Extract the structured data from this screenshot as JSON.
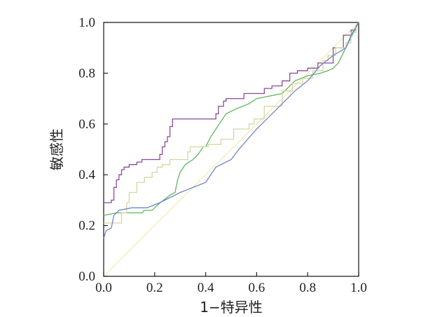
{
  "chart_data": {
    "type": "line",
    "title": "",
    "xlabel": "1−特异性",
    "ylabel": "敏感性",
    "xlim": [
      0,
      1
    ],
    "ylim": [
      0,
      1
    ],
    "grid": false,
    "xticks": [
      "0.0",
      "0.2",
      "0.4",
      "0.6",
      "0.8",
      "1.0"
    ],
    "yticks": [
      "0.0",
      "0.2",
      "0.4",
      "0.6",
      "0.8",
      "1.0"
    ],
    "reference_line": {
      "points": [
        [
          0,
          0
        ],
        [
          1,
          1
        ]
      ],
      "color": "#f2eab0"
    },
    "series": [
      {
        "color": "#8a4c9c",
        "points": [
          [
            0,
            0.29
          ],
          [
            0.03,
            0.29
          ],
          [
            0.03,
            0.3
          ],
          [
            0.04,
            0.3
          ],
          [
            0.04,
            0.35
          ],
          [
            0.05,
            0.35
          ],
          [
            0.05,
            0.38
          ],
          [
            0.06,
            0.38
          ],
          [
            0.06,
            0.4
          ],
          [
            0.07,
            0.4
          ],
          [
            0.07,
            0.42
          ],
          [
            0.08,
            0.42
          ],
          [
            0.08,
            0.43
          ],
          [
            0.1,
            0.43
          ],
          [
            0.1,
            0.44
          ],
          [
            0.13,
            0.44
          ],
          [
            0.13,
            0.45
          ],
          [
            0.15,
            0.45
          ],
          [
            0.15,
            0.46
          ],
          [
            0.22,
            0.46
          ],
          [
            0.22,
            0.48
          ],
          [
            0.23,
            0.48
          ],
          [
            0.23,
            0.51
          ],
          [
            0.24,
            0.51
          ],
          [
            0.24,
            0.53
          ],
          [
            0.25,
            0.53
          ],
          [
            0.25,
            0.55
          ],
          [
            0.26,
            0.55
          ],
          [
            0.26,
            0.59
          ],
          [
            0.27,
            0.59
          ],
          [
            0.27,
            0.62
          ],
          [
            0.44,
            0.62
          ],
          [
            0.44,
            0.64
          ],
          [
            0.45,
            0.64
          ],
          [
            0.45,
            0.67
          ],
          [
            0.47,
            0.67
          ],
          [
            0.47,
            0.69
          ],
          [
            0.48,
            0.69
          ],
          [
            0.48,
            0.7
          ],
          [
            0.55,
            0.7
          ],
          [
            0.55,
            0.72
          ],
          [
            0.63,
            0.72
          ],
          [
            0.63,
            0.74
          ],
          [
            0.66,
            0.74
          ],
          [
            0.66,
            0.75
          ],
          [
            0.7,
            0.75
          ],
          [
            0.7,
            0.77
          ],
          [
            0.73,
            0.77
          ],
          [
            0.73,
            0.8
          ],
          [
            0.76,
            0.8
          ],
          [
            0.76,
            0.81
          ],
          [
            0.8,
            0.81
          ],
          [
            0.8,
            0.82
          ],
          [
            0.84,
            0.82
          ],
          [
            0.84,
            0.84
          ],
          [
            0.9,
            0.84
          ],
          [
            0.9,
            0.9
          ],
          [
            0.94,
            0.9
          ],
          [
            0.94,
            0.95
          ],
          [
            0.97,
            0.95
          ],
          [
            0.97,
            0.97
          ],
          [
            0.99,
            0.97
          ],
          [
            0.99,
            0.99
          ],
          [
            1,
            1
          ]
        ]
      },
      {
        "color": "#5cb85c",
        "points": [
          [
            0,
            0.24
          ],
          [
            0.05,
            0.25
          ],
          [
            0.1,
            0.25
          ],
          [
            0.15,
            0.25
          ],
          [
            0.16,
            0.26
          ],
          [
            0.19,
            0.26
          ],
          [
            0.21,
            0.28
          ],
          [
            0.26,
            0.32
          ],
          [
            0.28,
            0.33
          ],
          [
            0.29,
            0.38
          ],
          [
            0.3,
            0.41
          ],
          [
            0.32,
            0.44
          ],
          [
            0.35,
            0.46
          ],
          [
            0.37,
            0.48
          ],
          [
            0.39,
            0.51
          ],
          [
            0.4,
            0.51
          ],
          [
            0.42,
            0.55
          ],
          [
            0.44,
            0.58
          ],
          [
            0.46,
            0.61
          ],
          [
            0.48,
            0.64
          ],
          [
            0.52,
            0.66
          ],
          [
            0.57,
            0.68
          ],
          [
            0.6,
            0.7
          ],
          [
            0.65,
            0.71
          ],
          [
            0.7,
            0.72
          ],
          [
            0.72,
            0.74
          ],
          [
            0.75,
            0.77
          ],
          [
            0.8,
            0.79
          ],
          [
            0.85,
            0.8
          ],
          [
            0.88,
            0.81
          ],
          [
            0.9,
            0.82
          ],
          [
            0.92,
            0.84
          ],
          [
            0.93,
            0.86
          ],
          [
            0.96,
            0.92
          ],
          [
            0.98,
            0.96
          ],
          [
            1,
            1
          ]
        ]
      },
      {
        "color": "#d5d6a4",
        "points": [
          [
            0,
            0.21
          ],
          [
            0.07,
            0.21
          ],
          [
            0.07,
            0.25
          ],
          [
            0.09,
            0.25
          ],
          [
            0.09,
            0.29
          ],
          [
            0.1,
            0.29
          ],
          [
            0.1,
            0.33
          ],
          [
            0.13,
            0.33
          ],
          [
            0.13,
            0.37
          ],
          [
            0.16,
            0.37
          ],
          [
            0.16,
            0.39
          ],
          [
            0.19,
            0.39
          ],
          [
            0.19,
            0.41
          ],
          [
            0.21,
            0.41
          ],
          [
            0.21,
            0.43
          ],
          [
            0.23,
            0.43
          ],
          [
            0.23,
            0.44
          ],
          [
            0.26,
            0.44
          ],
          [
            0.26,
            0.46
          ],
          [
            0.33,
            0.46
          ],
          [
            0.33,
            0.49
          ],
          [
            0.34,
            0.49
          ],
          [
            0.34,
            0.51
          ],
          [
            0.41,
            0.51
          ],
          [
            0.41,
            0.52
          ],
          [
            0.46,
            0.52
          ],
          [
            0.46,
            0.54
          ],
          [
            0.51,
            0.54
          ],
          [
            0.51,
            0.58
          ],
          [
            0.57,
            0.58
          ],
          [
            0.57,
            0.6
          ],
          [
            0.59,
            0.6
          ],
          [
            0.59,
            0.62
          ],
          [
            0.63,
            0.62
          ],
          [
            0.63,
            0.67
          ],
          [
            0.7,
            0.67
          ],
          [
            0.7,
            0.73
          ],
          [
            0.74,
            0.73
          ],
          [
            0.74,
            0.76
          ],
          [
            0.78,
            0.76
          ],
          [
            0.78,
            0.78
          ],
          [
            0.82,
            0.78
          ],
          [
            0.82,
            0.81
          ],
          [
            0.86,
            0.81
          ],
          [
            0.86,
            0.85
          ],
          [
            0.88,
            0.85
          ],
          [
            0.88,
            0.87
          ],
          [
            0.91,
            0.87
          ],
          [
            0.91,
            0.9
          ],
          [
            0.95,
            0.9
          ],
          [
            0.95,
            0.92
          ],
          [
            0.97,
            0.92
          ],
          [
            0.97,
            0.96
          ],
          [
            0.99,
            0.96
          ],
          [
            0.99,
            0.99
          ],
          [
            1,
            1
          ]
        ]
      },
      {
        "color": "#6f86c9",
        "points": [
          [
            0,
            0.15
          ],
          [
            0.01,
            0.18
          ],
          [
            0.03,
            0.19
          ],
          [
            0.04,
            0.24
          ],
          [
            0.06,
            0.26
          ],
          [
            0.11,
            0.27
          ],
          [
            0.12,
            0.27
          ],
          [
            0.17,
            0.27
          ],
          [
            0.22,
            0.29
          ],
          [
            0.3,
            0.33
          ],
          [
            0.4,
            0.37
          ],
          [
            0.44,
            0.43
          ],
          [
            0.5,
            0.46
          ],
          [
            0.53,
            0.5
          ],
          [
            0.6,
            0.58
          ],
          [
            0.7,
            0.68
          ],
          [
            0.75,
            0.73
          ],
          [
            0.8,
            0.77
          ],
          [
            0.85,
            0.83
          ],
          [
            0.9,
            0.87
          ],
          [
            0.95,
            0.9
          ],
          [
            0.97,
            0.95
          ],
          [
            1,
            1
          ]
        ]
      }
    ]
  }
}
